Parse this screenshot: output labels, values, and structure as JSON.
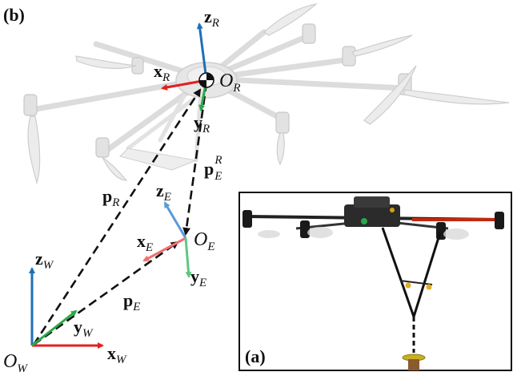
{
  "panels": {
    "b": {
      "tag": "(b)"
    },
    "a": {
      "tag": "(a)"
    }
  },
  "frames": {
    "world": {
      "origin": "O",
      "origin_sub": "W",
      "x": "x",
      "x_sub": "W",
      "y": "y",
      "y_sub": "W",
      "z": "z",
      "z_sub": "W"
    },
    "robot": {
      "origin": "O",
      "origin_sub": "R",
      "x": "x",
      "x_sub": "R",
      "y": "y",
      "y_sub": "R",
      "z": "z",
      "z_sub": "R"
    },
    "end_effector": {
      "origin": "O",
      "origin_sub": "E",
      "x": "x",
      "x_sub": "E",
      "y": "y",
      "y_sub": "E",
      "z": "z",
      "z_sub": "E"
    }
  },
  "vectors": {
    "p_R": {
      "base": "p",
      "sub": "R"
    },
    "p_E": {
      "base": "p",
      "sub": "E"
    },
    "p_E_R": {
      "base": "p",
      "sub": "E",
      "sup": "R"
    }
  },
  "colors": {
    "x_axis": "#e02020",
    "y_axis": "#2aa84a",
    "z_axis": "#1f6fb8",
    "x_axis_light": "#f07070",
    "y_axis_light": "#5cc882",
    "z_axis_light": "#5a9ad8",
    "dashed": "#111111"
  }
}
